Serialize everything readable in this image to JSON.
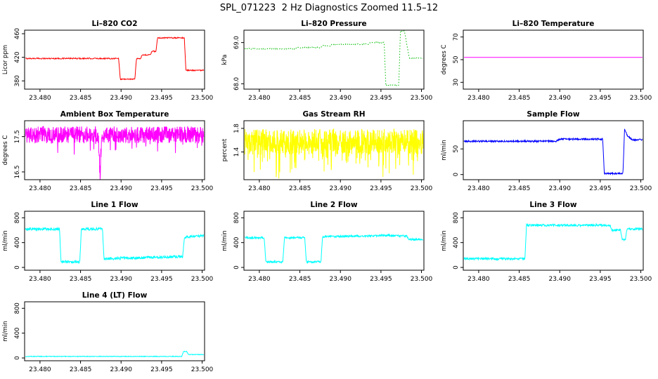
{
  "title": "SPL_071223  2 Hz Diagnostics Zoomed 11.5–12",
  "chart_data": [
    {
      "type": "line",
      "title": "Li–820 CO2",
      "ylabel": "Licor ppm",
      "color": "#FF0000",
      "xlim": [
        23.4781,
        23.5003
      ],
      "ylim": [
        366,
        466
      ],
      "xticks": [
        23.48,
        23.485,
        23.49,
        23.495,
        23.5
      ],
      "xtick_labels": [
        "23.480",
        "23.485",
        "23.490",
        "23.495",
        "23.500"
      ],
      "yticks": [
        380,
        420,
        460
      ],
      "ytick_labels": [
        "380",
        "420",
        "460"
      ],
      "noise": 1.0,
      "samples": 450,
      "points": [
        [
          23.4782,
          418
        ],
        [
          23.4897,
          418
        ],
        [
          23.4899,
          383
        ],
        [
          23.4917,
          383
        ],
        [
          23.4919,
          418
        ],
        [
          23.4924,
          418
        ],
        [
          23.4926,
          424
        ],
        [
          23.4936,
          424
        ],
        [
          23.4938,
          430
        ],
        [
          23.4943,
          430
        ],
        [
          23.4945,
          453
        ],
        [
          23.4978,
          453
        ],
        [
          23.498,
          398
        ],
        [
          23.5002,
          398
        ]
      ]
    },
    {
      "type": "line",
      "title": "Li–820 Pressure",
      "ylabel": "kPa",
      "color": "#00BB00",
      "xlim": [
        23.4781,
        23.5003
      ],
      "ylim": [
        67.87,
        69.3
      ],
      "xticks": [
        23.48,
        23.485,
        23.49,
        23.495,
        23.5
      ],
      "xtick_labels": [
        "23.480",
        "23.485",
        "23.490",
        "23.495",
        "23.500"
      ],
      "yticks": [
        68.0,
        69.0
      ],
      "ytick_labels": [
        "68.0",
        "69.0"
      ],
      "noise": 0.012,
      "samples": 450,
      "dash": "1.5,2.5",
      "points": [
        [
          23.4782,
          68.85
        ],
        [
          23.4845,
          68.85
        ],
        [
          23.4847,
          68.88
        ],
        [
          23.4875,
          68.88
        ],
        [
          23.4878,
          68.92
        ],
        [
          23.4888,
          68.92
        ],
        [
          23.489,
          68.96
        ],
        [
          23.4935,
          68.96
        ],
        [
          23.4937,
          69.0
        ],
        [
          23.4954,
          69.0
        ],
        [
          23.4956,
          67.96
        ],
        [
          23.4972,
          67.96
        ],
        [
          23.4974,
          69.28
        ],
        [
          23.4979,
          69.28
        ],
        [
          23.4985,
          68.62
        ],
        [
          23.5002,
          68.62
        ]
      ]
    },
    {
      "type": "line",
      "title": "Li–820 Temperature",
      "ylabel": "degrees C",
      "color": "#FF00FF",
      "xlim": [
        23.4781,
        23.5003
      ],
      "ylim": [
        24,
        76
      ],
      "xticks": [
        23.48,
        23.485,
        23.49,
        23.495,
        23.5
      ],
      "xtick_labels": [
        "23.480",
        "23.485",
        "23.490",
        "23.495",
        "23.500"
      ],
      "yticks": [
        30,
        50,
        70
      ],
      "ytick_labels": [
        "30",
        "50",
        "70"
      ],
      "noise": 0,
      "samples": 200,
      "points": [
        [
          23.4782,
          52
        ],
        [
          23.5002,
          52
        ]
      ]
    },
    {
      "type": "line",
      "title": "Ambient Box Temperature",
      "ylabel": "degrees C",
      "color": "#FF00FF",
      "xlim": [
        23.4781,
        23.5003
      ],
      "ylim": [
        16.28,
        17.95
      ],
      "xticks": [
        23.48,
        23.485,
        23.49,
        23.495,
        23.5
      ],
      "xtick_labels": [
        "23.480",
        "23.485",
        "23.490",
        "23.495",
        "23.500"
      ],
      "yticks": [
        16.5,
        17.5
      ],
      "ytick_labels": [
        "16.5",
        "17.5"
      ],
      "noise": 0.24,
      "samples": 800,
      "down_prob": 0.03,
      "down_mag": 0.4,
      "points": [
        [
          23.4782,
          17.55
        ],
        [
          23.4872,
          17.55
        ],
        [
          23.4874,
          16.35
        ],
        [
          23.4876,
          17.55
        ],
        [
          23.5002,
          17.55
        ]
      ]
    },
    {
      "type": "line",
      "title": "Gas Stream RH",
      "ylabel": "percent",
      "color": "#FFFF00",
      "xlim": [
        23.4781,
        23.5003
      ],
      "ylim": [
        0.93,
        1.93
      ],
      "xticks": [
        23.48,
        23.485,
        23.49,
        23.495,
        23.5
      ],
      "xtick_labels": [
        "23.480",
        "23.485",
        "23.490",
        "23.495",
        "23.500"
      ],
      "yticks": [
        1.4,
        1.8
      ],
      "ytick_labels": [
        "1.4",
        "1.8"
      ],
      "noise": 0.22,
      "samples": 800,
      "down_prob": 0.12,
      "down_mag": 0.5,
      "points": [
        [
          23.4782,
          1.57
        ],
        [
          23.5002,
          1.57
        ]
      ]
    },
    {
      "type": "line",
      "title": "Sample Flow",
      "ylabel": "ml/min",
      "color": "#0000FF",
      "xlim": [
        23.4781,
        23.5003
      ],
      "ylim": [
        -10,
        105
      ],
      "xticks": [
        23.48,
        23.485,
        23.49,
        23.495,
        23.5
      ],
      "xtick_labels": [
        "23.480",
        "23.485",
        "23.490",
        "23.495",
        "23.500"
      ],
      "yticks": [
        0,
        50
      ],
      "ytick_labels": [
        "0",
        "50"
      ],
      "noise": 1.6,
      "samples": 600,
      "points": [
        [
          23.4782,
          65
        ],
        [
          23.4895,
          65
        ],
        [
          23.49,
          69
        ],
        [
          23.4953,
          69
        ],
        [
          23.4955,
          2
        ],
        [
          23.4978,
          2
        ],
        [
          23.498,
          90
        ],
        [
          23.4984,
          74
        ],
        [
          23.499,
          68
        ],
        [
          23.5002,
          68
        ]
      ]
    },
    {
      "type": "line",
      "title": "Line 1 Flow",
      "ylabel": "ml/min",
      "color": "#00FFFF",
      "xlim": [
        23.4781,
        23.5003
      ],
      "ylim": [
        -45,
        905
      ],
      "xticks": [
        23.48,
        23.485,
        23.49,
        23.495,
        23.5
      ],
      "xtick_labels": [
        "23.480",
        "23.485",
        "23.490",
        "23.495",
        "23.500"
      ],
      "yticks": [
        0,
        400,
        800
      ],
      "ytick_labels": [
        "0",
        "400",
        "800"
      ],
      "noise": 22,
      "samples": 600,
      "points": [
        [
          23.4782,
          620
        ],
        [
          23.4824,
          620
        ],
        [
          23.4826,
          90
        ],
        [
          23.4849,
          90
        ],
        [
          23.4851,
          620
        ],
        [
          23.4877,
          620
        ],
        [
          23.4879,
          140
        ],
        [
          23.4976,
          175
        ],
        [
          23.4978,
          480
        ],
        [
          23.499,
          505
        ],
        [
          23.5002,
          510
        ]
      ]
    },
    {
      "type": "line",
      "title": "Line 2 Flow",
      "ylabel": "ml/min",
      "color": "#00FFFF",
      "xlim": [
        23.4781,
        23.5003
      ],
      "ylim": [
        -45,
        905
      ],
      "xticks": [
        23.48,
        23.485,
        23.49,
        23.495,
        23.5
      ],
      "xtick_labels": [
        "23.480",
        "23.485",
        "23.490",
        "23.495",
        "23.500"
      ],
      "yticks": [
        0,
        400,
        800
      ],
      "ytick_labels": [
        "0",
        "400",
        "800"
      ],
      "noise": 16,
      "samples": 600,
      "points": [
        [
          23.4782,
          480
        ],
        [
          23.4806,
          480
        ],
        [
          23.4808,
          90
        ],
        [
          23.4829,
          90
        ],
        [
          23.4831,
          480
        ],
        [
          23.4856,
          480
        ],
        [
          23.4858,
          90
        ],
        [
          23.4876,
          90
        ],
        [
          23.4878,
          495
        ],
        [
          23.496,
          515
        ],
        [
          23.4982,
          505
        ],
        [
          23.4984,
          450
        ],
        [
          23.5002,
          450
        ]
      ]
    },
    {
      "type": "line",
      "title": "Line 3 Flow",
      "ylabel": "ml/min",
      "color": "#00FFFF",
      "xlim": [
        23.4781,
        23.5003
      ],
      "ylim": [
        -45,
        905
      ],
      "xticks": [
        23.48,
        23.485,
        23.49,
        23.495,
        23.5
      ],
      "xtick_labels": [
        "23.480",
        "23.485",
        "23.490",
        "23.495",
        "23.500"
      ],
      "yticks": [
        0,
        400,
        800
      ],
      "ytick_labels": [
        "0",
        "400",
        "800"
      ],
      "noise": 18,
      "samples": 600,
      "points": [
        [
          23.4782,
          140
        ],
        [
          23.4857,
          140
        ],
        [
          23.4859,
          680
        ],
        [
          23.4962,
          680
        ],
        [
          23.4964,
          600
        ],
        [
          23.4975,
          600
        ],
        [
          23.4977,
          450
        ],
        [
          23.4981,
          450
        ],
        [
          23.4983,
          620
        ],
        [
          23.5002,
          620
        ]
      ]
    },
    {
      "type": "line",
      "title": "Line 4 (LT) Flow",
      "ylabel": "ml/min",
      "color": "#00FFFF",
      "xlim": [
        23.4781,
        23.5003
      ],
      "ylim": [
        -45,
        905
      ],
      "xticks": [
        23.48,
        23.485,
        23.49,
        23.495,
        23.5
      ],
      "xtick_labels": [
        "23.480",
        "23.485",
        "23.490",
        "23.495",
        "23.500"
      ],
      "yticks": [
        0,
        400,
        800
      ],
      "ytick_labels": [
        "0",
        "400",
        "800"
      ],
      "noise": 5,
      "samples": 600,
      "points": [
        [
          23.4782,
          25
        ],
        [
          23.4975,
          25
        ],
        [
          23.4977,
          105
        ],
        [
          23.4981,
          105
        ],
        [
          23.4983,
          55
        ],
        [
          23.5002,
          55
        ]
      ]
    }
  ]
}
